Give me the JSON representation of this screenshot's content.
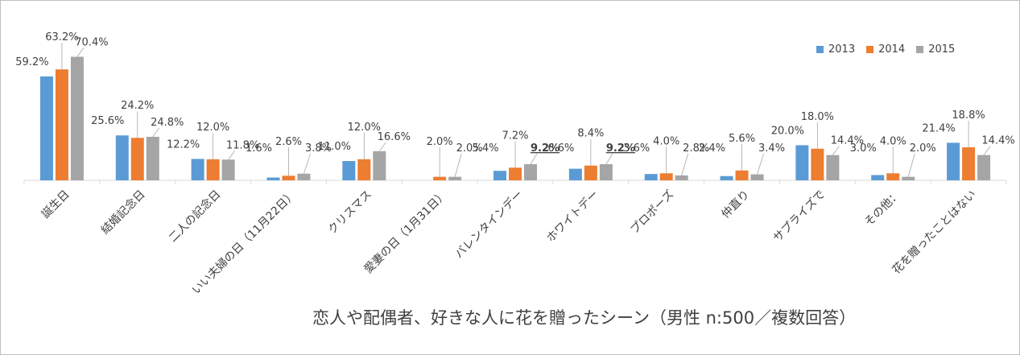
{
  "chart_data": {
    "type": "bar",
    "title": "恋人や配偶者、好きな人に花を贈ったシーン（男性 n:500／複数回答）",
    "categories": [
      "誕生日",
      "結婚記念日",
      "二人の記念日",
      "いい夫婦の日（11月22日）",
      "クリスマス",
      "愛妻の日（1月31日）",
      "バレンタインデー",
      "ホワイトデー",
      "プロポーズ",
      "仲直り",
      "サプライズで",
      "その他：",
      "花を贈ったことはない"
    ],
    "series": [
      {
        "name": "2013",
        "color": "#5b9bd5",
        "values": [
          59.2,
          25.6,
          12.2,
          1.6,
          11.0,
          null,
          5.4,
          6.6,
          3.6,
          2.4,
          20.0,
          3.0,
          21.4
        ]
      },
      {
        "name": "2014",
        "color": "#ed7d31",
        "values": [
          63.2,
          24.2,
          12.0,
          2.6,
          12.0,
          2.0,
          7.2,
          8.4,
          4.0,
          5.6,
          18.0,
          4.0,
          18.8
        ]
      },
      {
        "name": "2015",
        "color": "#a5a5a5",
        "values": [
          70.4,
          24.8,
          11.8,
          3.8,
          16.6,
          2.0,
          9.2,
          9.2,
          2.8,
          3.4,
          14.4,
          2.0,
          14.4
        ]
      }
    ],
    "data_labels": [
      [
        "59.2%",
        "25.6%",
        "12.2%",
        "1.6%",
        "11.0%",
        "",
        "5.4%",
        "6.6%",
        "3.6%",
        "2.4%",
        "20.0%",
        "3.0%",
        "21.4%"
      ],
      [
        "63.2%",
        "24.2%",
        "12.0%",
        "2.6%",
        "12.0%",
        "2.0%",
        "7.2%",
        "8.4%",
        "4.0%",
        "5.6%",
        "18.0%",
        "4.0%",
        "18.8%"
      ],
      [
        "70.4%",
        "24.8%",
        "11.8%",
        "3.8%",
        "16.6%",
        "2.0%",
        "9.2%",
        "9.2%",
        "2.8%",
        "3.4%",
        "14.4%",
        "2.0%",
        "14.4%"
      ]
    ],
    "bold_labels": [
      [
        2,
        6
      ],
      [
        2,
        7
      ]
    ],
    "ylim": [
      0,
      75
    ],
    "grid": false,
    "legend_position": "top-right"
  }
}
